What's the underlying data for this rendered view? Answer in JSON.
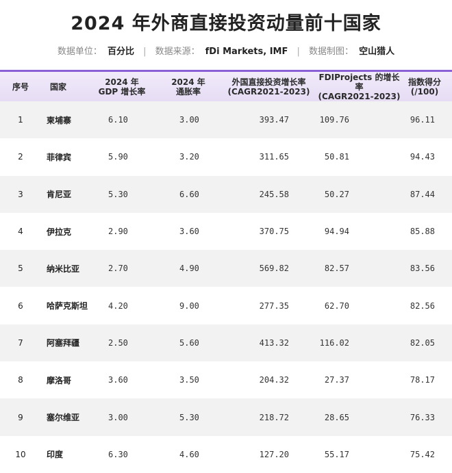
{
  "title": "2024 年外商直接投资动量前十国家",
  "meta": {
    "unit_label": "数据单位：",
    "unit_value": "百分比",
    "source_label": "数据来源：",
    "source_value": "fDi Markets, IMF",
    "author_label": "数据制图：",
    "author_value": "空山猎人",
    "separator": "|"
  },
  "columns": [
    "序号",
    "国家",
    "2024 年\nGDP 增长率",
    "2024 年\n通胀率",
    "外国直接投资增长率\n(CAGR2021-2023)",
    "FDIProjects 的增长率\n(CAGR2021-2023)",
    "指数得分\n(/100)"
  ],
  "rows": [
    {
      "rank": "1",
      "country": "柬埔寨",
      "gdp": "6.10",
      "inflation": "3.00",
      "fdi": "393.47",
      "projects": "109.76",
      "score": "96.11"
    },
    {
      "rank": "2",
      "country": "菲律宾",
      "gdp": "5.90",
      "inflation": "3.20",
      "fdi": "311.65",
      "projects": "50.81",
      "score": "94.43"
    },
    {
      "rank": "3",
      "country": "肯尼亚",
      "gdp": "5.30",
      "inflation": "6.60",
      "fdi": "245.58",
      "projects": "50.27",
      "score": "87.44"
    },
    {
      "rank": "4",
      "country": "伊拉克",
      "gdp": "2.90",
      "inflation": "3.60",
      "fdi": "370.75",
      "projects": "94.94",
      "score": "85.88"
    },
    {
      "rank": "5",
      "country": "纳米比亚",
      "gdp": "2.70",
      "inflation": "4.90",
      "fdi": "569.82",
      "projects": "82.57",
      "score": "83.56"
    },
    {
      "rank": "6",
      "country": "哈萨克斯坦",
      "gdp": "4.20",
      "inflation": "9.00",
      "fdi": "277.35",
      "projects": "62.70",
      "score": "82.56"
    },
    {
      "rank": "7",
      "country": "阿塞拜疆",
      "gdp": "2.50",
      "inflation": "5.60",
      "fdi": "413.32",
      "projects": "116.02",
      "score": "82.05"
    },
    {
      "rank": "8",
      "country": "摩洛哥",
      "gdp": "3.60",
      "inflation": "3.50",
      "fdi": "204.32",
      "projects": "27.37",
      "score": "78.17"
    },
    {
      "rank": "9",
      "country": "塞尔维亚",
      "gdp": "3.00",
      "inflation": "5.30",
      "fdi": "218.72",
      "projects": "28.65",
      "score": "76.33"
    },
    {
      "rank": "10",
      "country": "印度",
      "gdp": "6.30",
      "inflation": "4.60",
      "fdi": "127.20",
      "projects": "55.17",
      "score": "75.42"
    }
  ],
  "colors": {
    "header_accent": "#8b5fd6",
    "header_bg": "#e6dcf4",
    "stripe_bg": "#f2f2f2"
  }
}
